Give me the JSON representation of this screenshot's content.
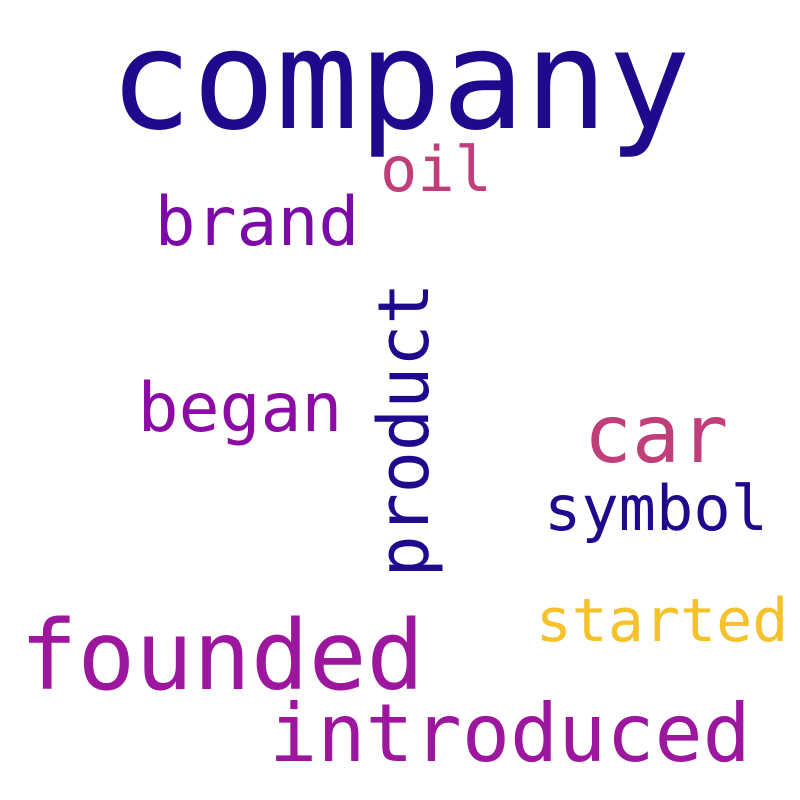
{
  "word_cloud": {
    "words": [
      {
        "text": "company",
        "color": "#1e0a8c",
        "orientation": "horizontal"
      },
      {
        "text": "oil",
        "color": "#c03f7a",
        "orientation": "horizontal"
      },
      {
        "text": "brand",
        "color": "#7c0aa6",
        "orientation": "horizontal"
      },
      {
        "text": "product",
        "color": "#1e0a8c",
        "orientation": "vertical"
      },
      {
        "text": "began",
        "color": "#8d0ba5",
        "orientation": "horizontal"
      },
      {
        "text": "car",
        "color": "#c03f7a",
        "orientation": "horizontal"
      },
      {
        "text": "symbol",
        "color": "#1e0a8c",
        "orientation": "horizontal"
      },
      {
        "text": "founded",
        "color": "#9c179e",
        "orientation": "horizontal"
      },
      {
        "text": "started",
        "color": "#f6c22c",
        "orientation": "horizontal"
      },
      {
        "text": "introduced",
        "color": "#9c179e",
        "orientation": "horizontal"
      }
    ]
  }
}
